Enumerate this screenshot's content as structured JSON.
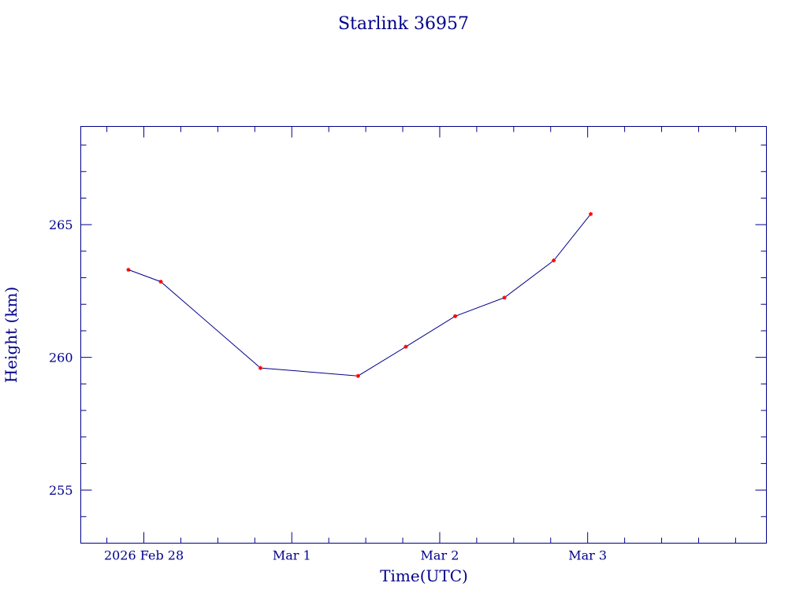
{
  "chart_data": {
    "type": "line",
    "title": "Starlink 36957",
    "xlabel": "Time(UTC)",
    "ylabel": "Height (km)",
    "x_tick_labels": [
      "2026 Feb 28",
      "Mar  1",
      "Mar  2",
      "Mar  3"
    ],
    "y_tick_labels": [
      "255",
      "260",
      "265"
    ],
    "y_ticks": [
      255,
      260,
      265
    ],
    "ylim": [
      253.0,
      268.7
    ],
    "xlim": [
      "2026-02-27T13:46",
      "2026-03-04T05:00"
    ],
    "x_ticks": [
      "2026-02-28T00:00",
      "2026-03-01T00:00",
      "2026-03-02T00:00",
      "2026-03-03T00:00"
    ],
    "grid": false,
    "legend": "none",
    "colors": {
      "line": "#00008b",
      "marker": "#ff0000",
      "axes": "#00008b"
    },
    "series": [
      {
        "x": [
          "2026-02-27T21:30",
          "2026-02-28T02:45",
          "2026-02-28T18:55",
          "2026-03-01T10:45",
          "2026-03-01T18:30",
          "2026-03-02T02:30",
          "2026-03-02T10:30",
          "2026-03-02T18:30",
          "2026-03-03T00:30"
        ],
        "y": [
          263.3,
          262.85,
          259.6,
          259.3,
          260.4,
          261.55,
          262.25,
          263.65,
          265.4
        ]
      }
    ]
  }
}
